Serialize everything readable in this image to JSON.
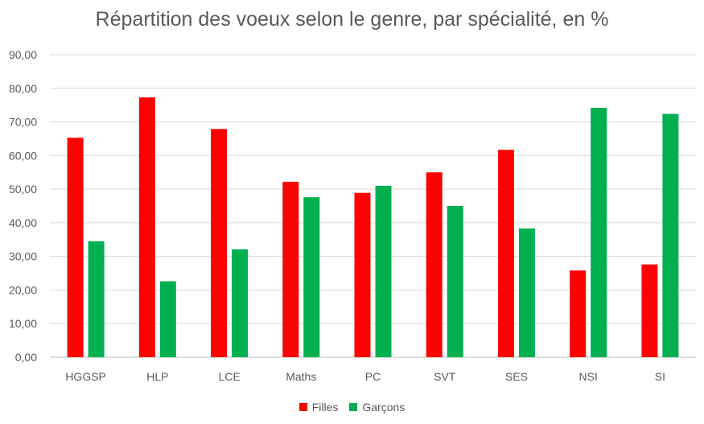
{
  "chart_data": {
    "type": "bar",
    "title": "Répartition des voeux selon le genre, par spécialité, en %",
    "xlabel": "",
    "ylabel": "",
    "ylim": [
      0,
      90
    ],
    "yticks": [
      "0,00",
      "10,00",
      "20,00",
      "30,00",
      "40,00",
      "50,00",
      "60,00",
      "70,00",
      "80,00",
      "90,00"
    ],
    "grid": true,
    "legend_position": "bottom",
    "categories": [
      "HGGSP",
      "HLP",
      "LCE",
      "Maths",
      "PC",
      "SVT",
      "SES",
      "NSI",
      "SI"
    ],
    "series": [
      {
        "name": "Filles",
        "color": "#ff0000",
        "values": [
          65.3,
          77.3,
          67.9,
          52.2,
          48.9,
          55.0,
          61.7,
          25.8,
          27.6
        ]
      },
      {
        "name": "Garçons",
        "color": "#00b050",
        "values": [
          34.5,
          22.6,
          32.1,
          47.6,
          51.0,
          45.0,
          38.3,
          74.2,
          72.4
        ]
      }
    ]
  }
}
